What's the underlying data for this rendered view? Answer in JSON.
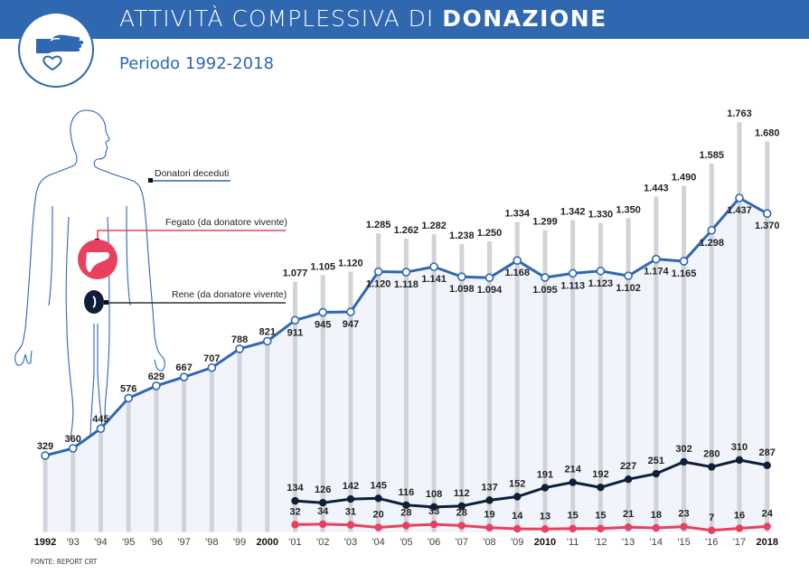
{
  "header": {
    "title_light": "ATTIVITÀ COMPLESSIVA DI ",
    "title_bold": "DONAZIONE",
    "subtitle": "Periodo 1992-2018",
    "logo_icon": "hand-heart-icon"
  },
  "colors": {
    "brand": "#2f67b1",
    "deceased": "#2f67b1",
    "liver": "#e8415f",
    "kidney": "#0f1f3a",
    "bar": "#d0d3d8",
    "area": "#f1f5fb"
  },
  "legend": {
    "deceased": "Donatori deceduti",
    "liver": "Fegato (da donatore vivente)",
    "kidney": "Rene  (da donatore vivente)"
  },
  "source": "FONTE: REPORT CRT",
  "chart_data": {
    "type": "line",
    "title": "ATTIVITÀ COMPLESSIVA DI DONAZIONE",
    "subtitle": "Periodo 1992-2018",
    "xlabel": "",
    "ylabel": "",
    "ylim": [
      0,
      1800
    ],
    "grid": false,
    "x": [
      1992,
      1993,
      1994,
      1995,
      1996,
      1997,
      1998,
      1999,
      2000,
      2001,
      2002,
      2003,
      2004,
      2005,
      2006,
      2007,
      2008,
      2009,
      2010,
      2011,
      2012,
      2013,
      2014,
      2015,
      2016,
      2017,
      2018
    ],
    "tick_labels": [
      "1992",
      "'93",
      "'94",
      "'95",
      "'96",
      "'97",
      "'98",
      "'99",
      "2000",
      "'01",
      "'02",
      "'03",
      "'04",
      "'05",
      "'06",
      "'07",
      "'08",
      "'09",
      "2010",
      "'11",
      "'12",
      "'13",
      "'14",
      "'15",
      "'16",
      "'17",
      "2018"
    ],
    "bold_ticks": [
      "1992",
      "2000",
      "2010",
      "2018"
    ],
    "bars": {
      "name": "Totale",
      "x": [
        2001,
        2002,
        2003,
        2004,
        2005,
        2006,
        2007,
        2008,
        2009,
        2010,
        2011,
        2012,
        2013,
        2014,
        2015,
        2016,
        2017,
        2018
      ],
      "values": [
        1077,
        1105,
        1120,
        1285,
        1262,
        1282,
        1238,
        1250,
        1334,
        1299,
        1342,
        1330,
        1350,
        1443,
        1490,
        1585,
        1763,
        1680
      ],
      "labels": [
        "1.077",
        "1.105",
        "1.120",
        "1.285",
        "1.262",
        "1.282",
        "1.238",
        "1.250",
        "1.334",
        "1.299",
        "1.342",
        "1.330",
        "1.350",
        "1.443",
        "1.490",
        "1.585",
        "1.763",
        "1.680"
      ]
    },
    "series": [
      {
        "name": "Donatori deceduti",
        "x": [
          1992,
          1993,
          1994,
          1995,
          1996,
          1997,
          1998,
          1999,
          2000,
          2001,
          2002,
          2003,
          2004,
          2005,
          2006,
          2007,
          2008,
          2009,
          2010,
          2011,
          2012,
          2013,
          2014,
          2015,
          2016,
          2017,
          2018
        ],
        "values": [
          329,
          360,
          445,
          576,
          629,
          667,
          707,
          788,
          821,
          911,
          945,
          947,
          1120,
          1118,
          1141,
          1098,
          1094,
          1168,
          1095,
          1113,
          1123,
          1102,
          1174,
          1165,
          1298,
          1437,
          1370
        ],
        "labels": [
          "329",
          "360",
          "445",
          "576",
          "629",
          "667",
          "707",
          "788",
          "821",
          "911",
          "945",
          "947",
          "1.120",
          "1.118",
          "1.141",
          "1.098",
          "1.094",
          "1.168",
          "1.095",
          "1.113",
          "1.123",
          "1.102",
          "1.174",
          "1.165",
          "1.298",
          "1.437",
          "1.370"
        ]
      },
      {
        "name": "Rene (da donatore vivente)",
        "x": [
          2001,
          2002,
          2003,
          2004,
          2005,
          2006,
          2007,
          2008,
          2009,
          2010,
          2011,
          2012,
          2013,
          2014,
          2015,
          2016,
          2017,
          2018
        ],
        "values": [
          134,
          126,
          142,
          145,
          116,
          108,
          112,
          137,
          152,
          191,
          214,
          192,
          227,
          251,
          302,
          280,
          310,
          287
        ],
        "labels": [
          "134",
          "126",
          "142",
          "145",
          "116",
          "108",
          "112",
          "137",
          "152",
          "191",
          "214",
          "192",
          "227",
          "251",
          "302",
          "280",
          "310",
          "287"
        ]
      },
      {
        "name": "Fegato (da donatore vivente)",
        "x": [
          2001,
          2002,
          2003,
          2004,
          2005,
          2006,
          2007,
          2008,
          2009,
          2010,
          2011,
          2012,
          2013,
          2014,
          2015,
          2016,
          2017,
          2018
        ],
        "values": [
          32,
          34,
          31,
          20,
          28,
          33,
          28,
          19,
          14,
          13,
          15,
          15,
          21,
          18,
          23,
          7,
          16,
          24
        ],
        "labels": [
          "32",
          "34",
          "31",
          "20",
          "28",
          "33",
          "28",
          "19",
          "14",
          "13",
          "15",
          "15",
          "21",
          "18",
          "23",
          "7",
          "16",
          "24"
        ]
      }
    ]
  }
}
